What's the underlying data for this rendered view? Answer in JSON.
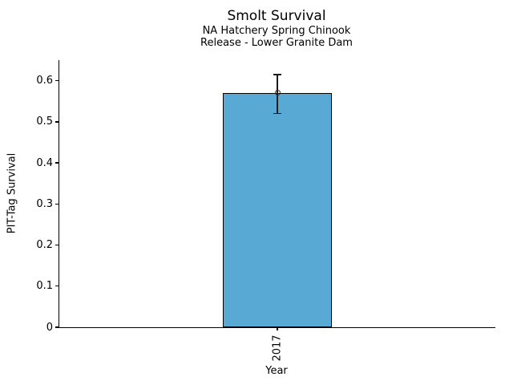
{
  "chart_data": {
    "type": "bar",
    "title": "Smolt Survival",
    "subtitle_lines": [
      "NA Hatchery Spring Chinook",
      "Release - Lower Granite Dam"
    ],
    "categories": [
      "2017"
    ],
    "values": [
      0.57
    ],
    "error_bars": [
      {
        "low": 0.52,
        "high": 0.615
      }
    ],
    "xlabel": "Year",
    "ylabel": "PIT-Tag Survival",
    "ylim": [
      0,
      0.65
    ],
    "yticks": [
      0,
      0.1,
      0.2,
      0.3,
      0.4,
      0.5,
      0.6
    ],
    "grid": false,
    "legend": "none",
    "marker": "open-circle",
    "bar_color": "#58A9D4",
    "bar_edge_color": "#000000",
    "error_bar_color": "#1a1a1a",
    "background_color": "#ffffff"
  }
}
